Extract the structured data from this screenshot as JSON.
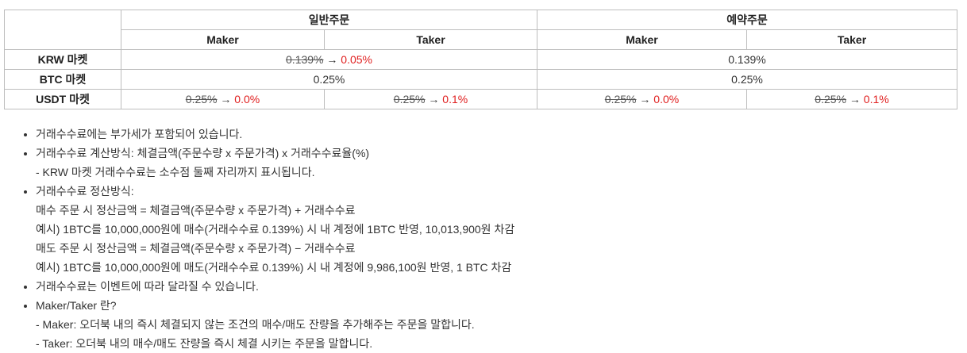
{
  "table": {
    "header": {
      "group1": "일반주문",
      "group2": "예약주문",
      "maker1": "Maker",
      "taker1": "Taker",
      "maker2": "Maker",
      "taker2": "Taker"
    },
    "rows": {
      "krw": {
        "label": "KRW 마켓",
        "normal_old": "0.139%",
        "arrow": "→",
        "normal_new": "0.05%",
        "reserved": "0.139%"
      },
      "btc": {
        "label": "BTC 마켓",
        "normal": "0.25%",
        "reserved": "0.25%"
      },
      "usdt": {
        "label": "USDT 마켓",
        "normal_maker_old": "0.25%",
        "normal_maker_new": "0.0%",
        "normal_taker_old": "0.25%",
        "normal_taker_new": "0.1%",
        "reserved_maker_old": "0.25%",
        "reserved_maker_new": "0.0%",
        "reserved_taker_old": "0.25%",
        "reserved_taker_new": "0.1%",
        "arrow": "→"
      }
    }
  },
  "notes": [
    [
      "거래수수료에는 부가세가 포함되어 있습니다."
    ],
    [
      "거래수수료 계산방식: 체결금액(주문수량 x 주문가격) x 거래수수료율(%)",
      "- KRW 마켓 거래수수료는 소수점 둘째 자리까지 표시됩니다."
    ],
    [
      "거래수수료 정산방식:",
      "매수 주문 시 정산금액 = 체결금액(주문수량 x 주문가격) + 거래수수료",
      "예시) 1BTC를 10,000,000원에 매수(거래수수료 0.139%) 시 내 계정에 1BTC 반영, 10,013,900원 차감",
      "매도 주문 시 정산금액 = 체결금액(주문수량 x 주문가격) − 거래수수료",
      "예시) 1BTC를 10,000,000원에 매도(거래수수료 0.139%) 시 내 계정에 9,986,100원 반영, 1 BTC 차감"
    ],
    [
      "거래수수료는 이벤트에 따라 달라질 수 있습니다."
    ],
    [
      "Maker/Taker 란?",
      "- Maker: 오더북 내의 즉시 체결되지 않는 조건의 매수/매도 잔량을 추가해주는 주문을 말합니다.",
      "- Taker: 오더북 내의 매수/매도 잔량을 즉시 체결 시키는 주문을 말합니다."
    ]
  ]
}
